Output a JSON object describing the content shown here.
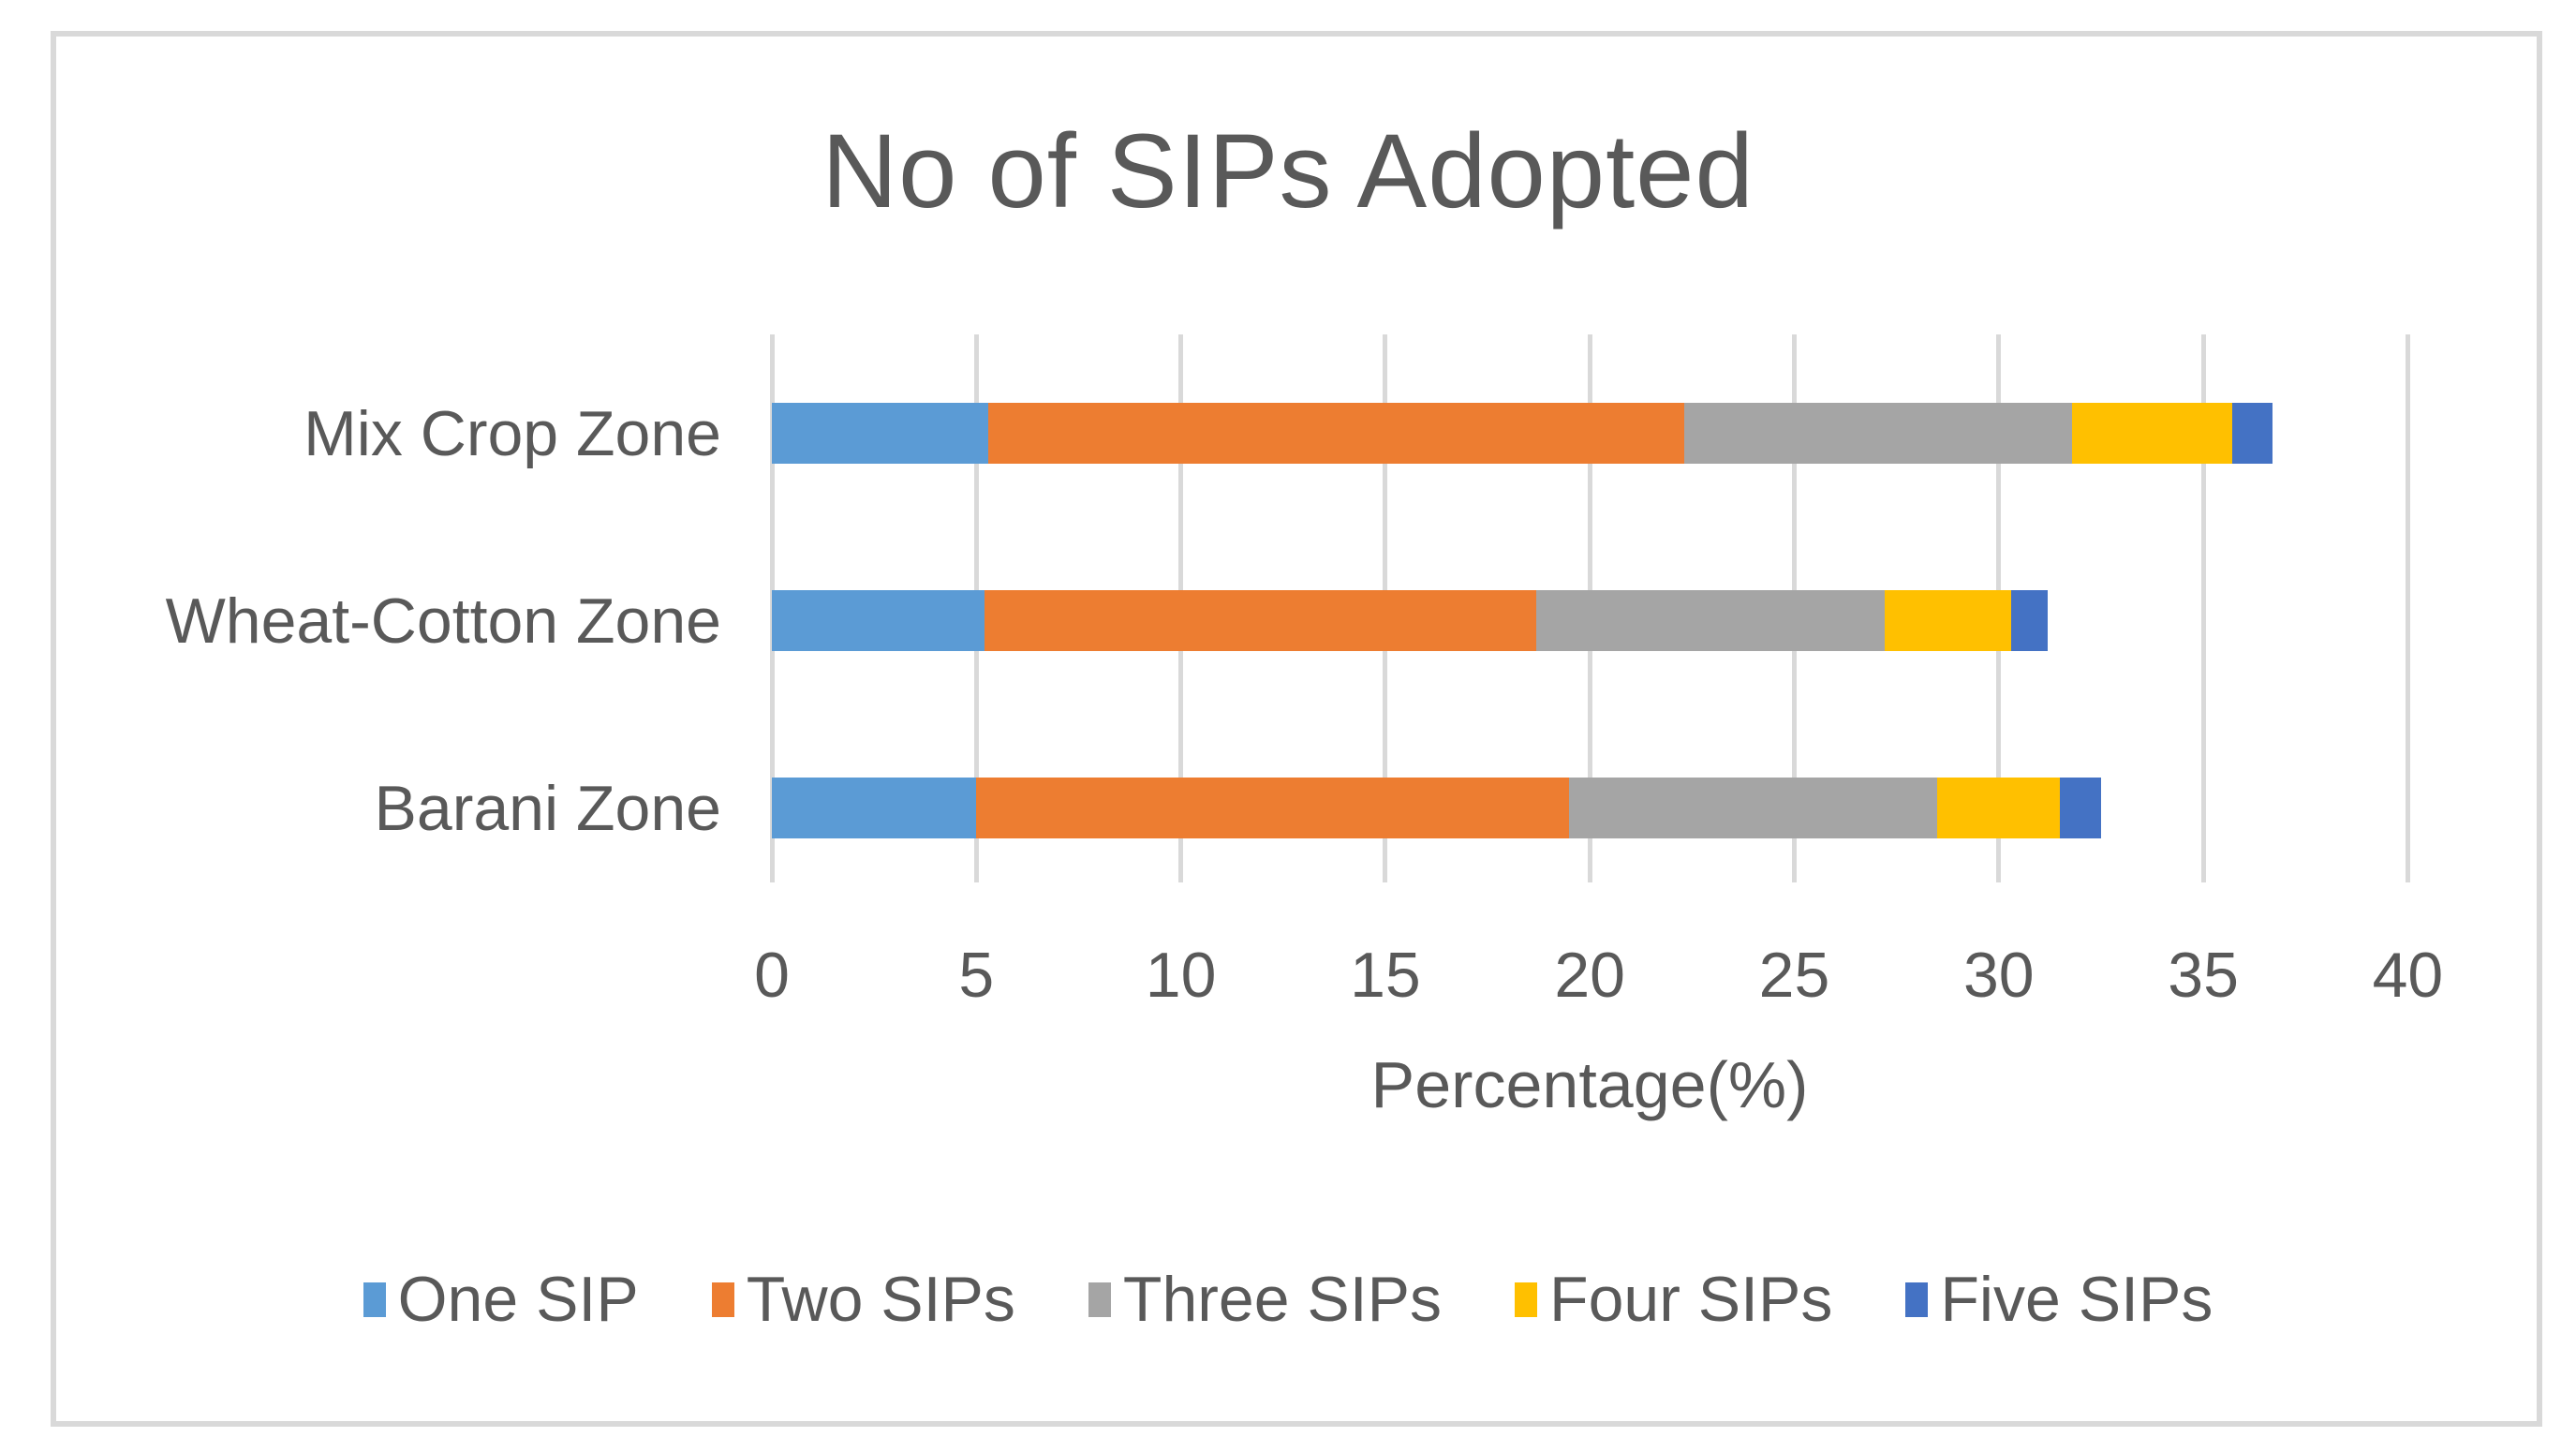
{
  "chart_data": {
    "type": "bar",
    "orientation": "horizontal",
    "stacked": true,
    "title": "No of SIPs Adopted",
    "xlabel": "Percentage(%)",
    "categories": [
      "Mix Crop Zone",
      "Wheat-Cotton Zone",
      "Barani Zone"
    ],
    "series": [
      {
        "name": "One SIP",
        "color": "#5B9BD5",
        "values": [
          5.3,
          5.2,
          5.0
        ]
      },
      {
        "name": "Two SIPs",
        "color": "#ED7D31",
        "values": [
          17.0,
          13.5,
          14.5
        ]
      },
      {
        "name": "Three SIPs",
        "color": "#A5A5A5",
        "values": [
          9.5,
          8.5,
          9.0
        ]
      },
      {
        "name": "Four SIPs",
        "color": "#FFC000",
        "values": [
          3.9,
          3.1,
          3.0
        ]
      },
      {
        "name": "Five SIPs",
        "color": "#4472C4",
        "values": [
          1.0,
          0.9,
          1.0
        ]
      }
    ],
    "totals": [
      36.7,
      31.2,
      32.5
    ],
    "xlim": [
      0,
      40
    ],
    "xticks": [
      0,
      5,
      10,
      15,
      20,
      25,
      30,
      35,
      40
    ],
    "grid": "vertical-gridlines-every-5",
    "legend_position": "bottom"
  },
  "colors": {
    "text": "#595959",
    "gridline": "#D9D9D9",
    "chart_border": "#D9D9D9",
    "background": "#FFFFFF"
  }
}
